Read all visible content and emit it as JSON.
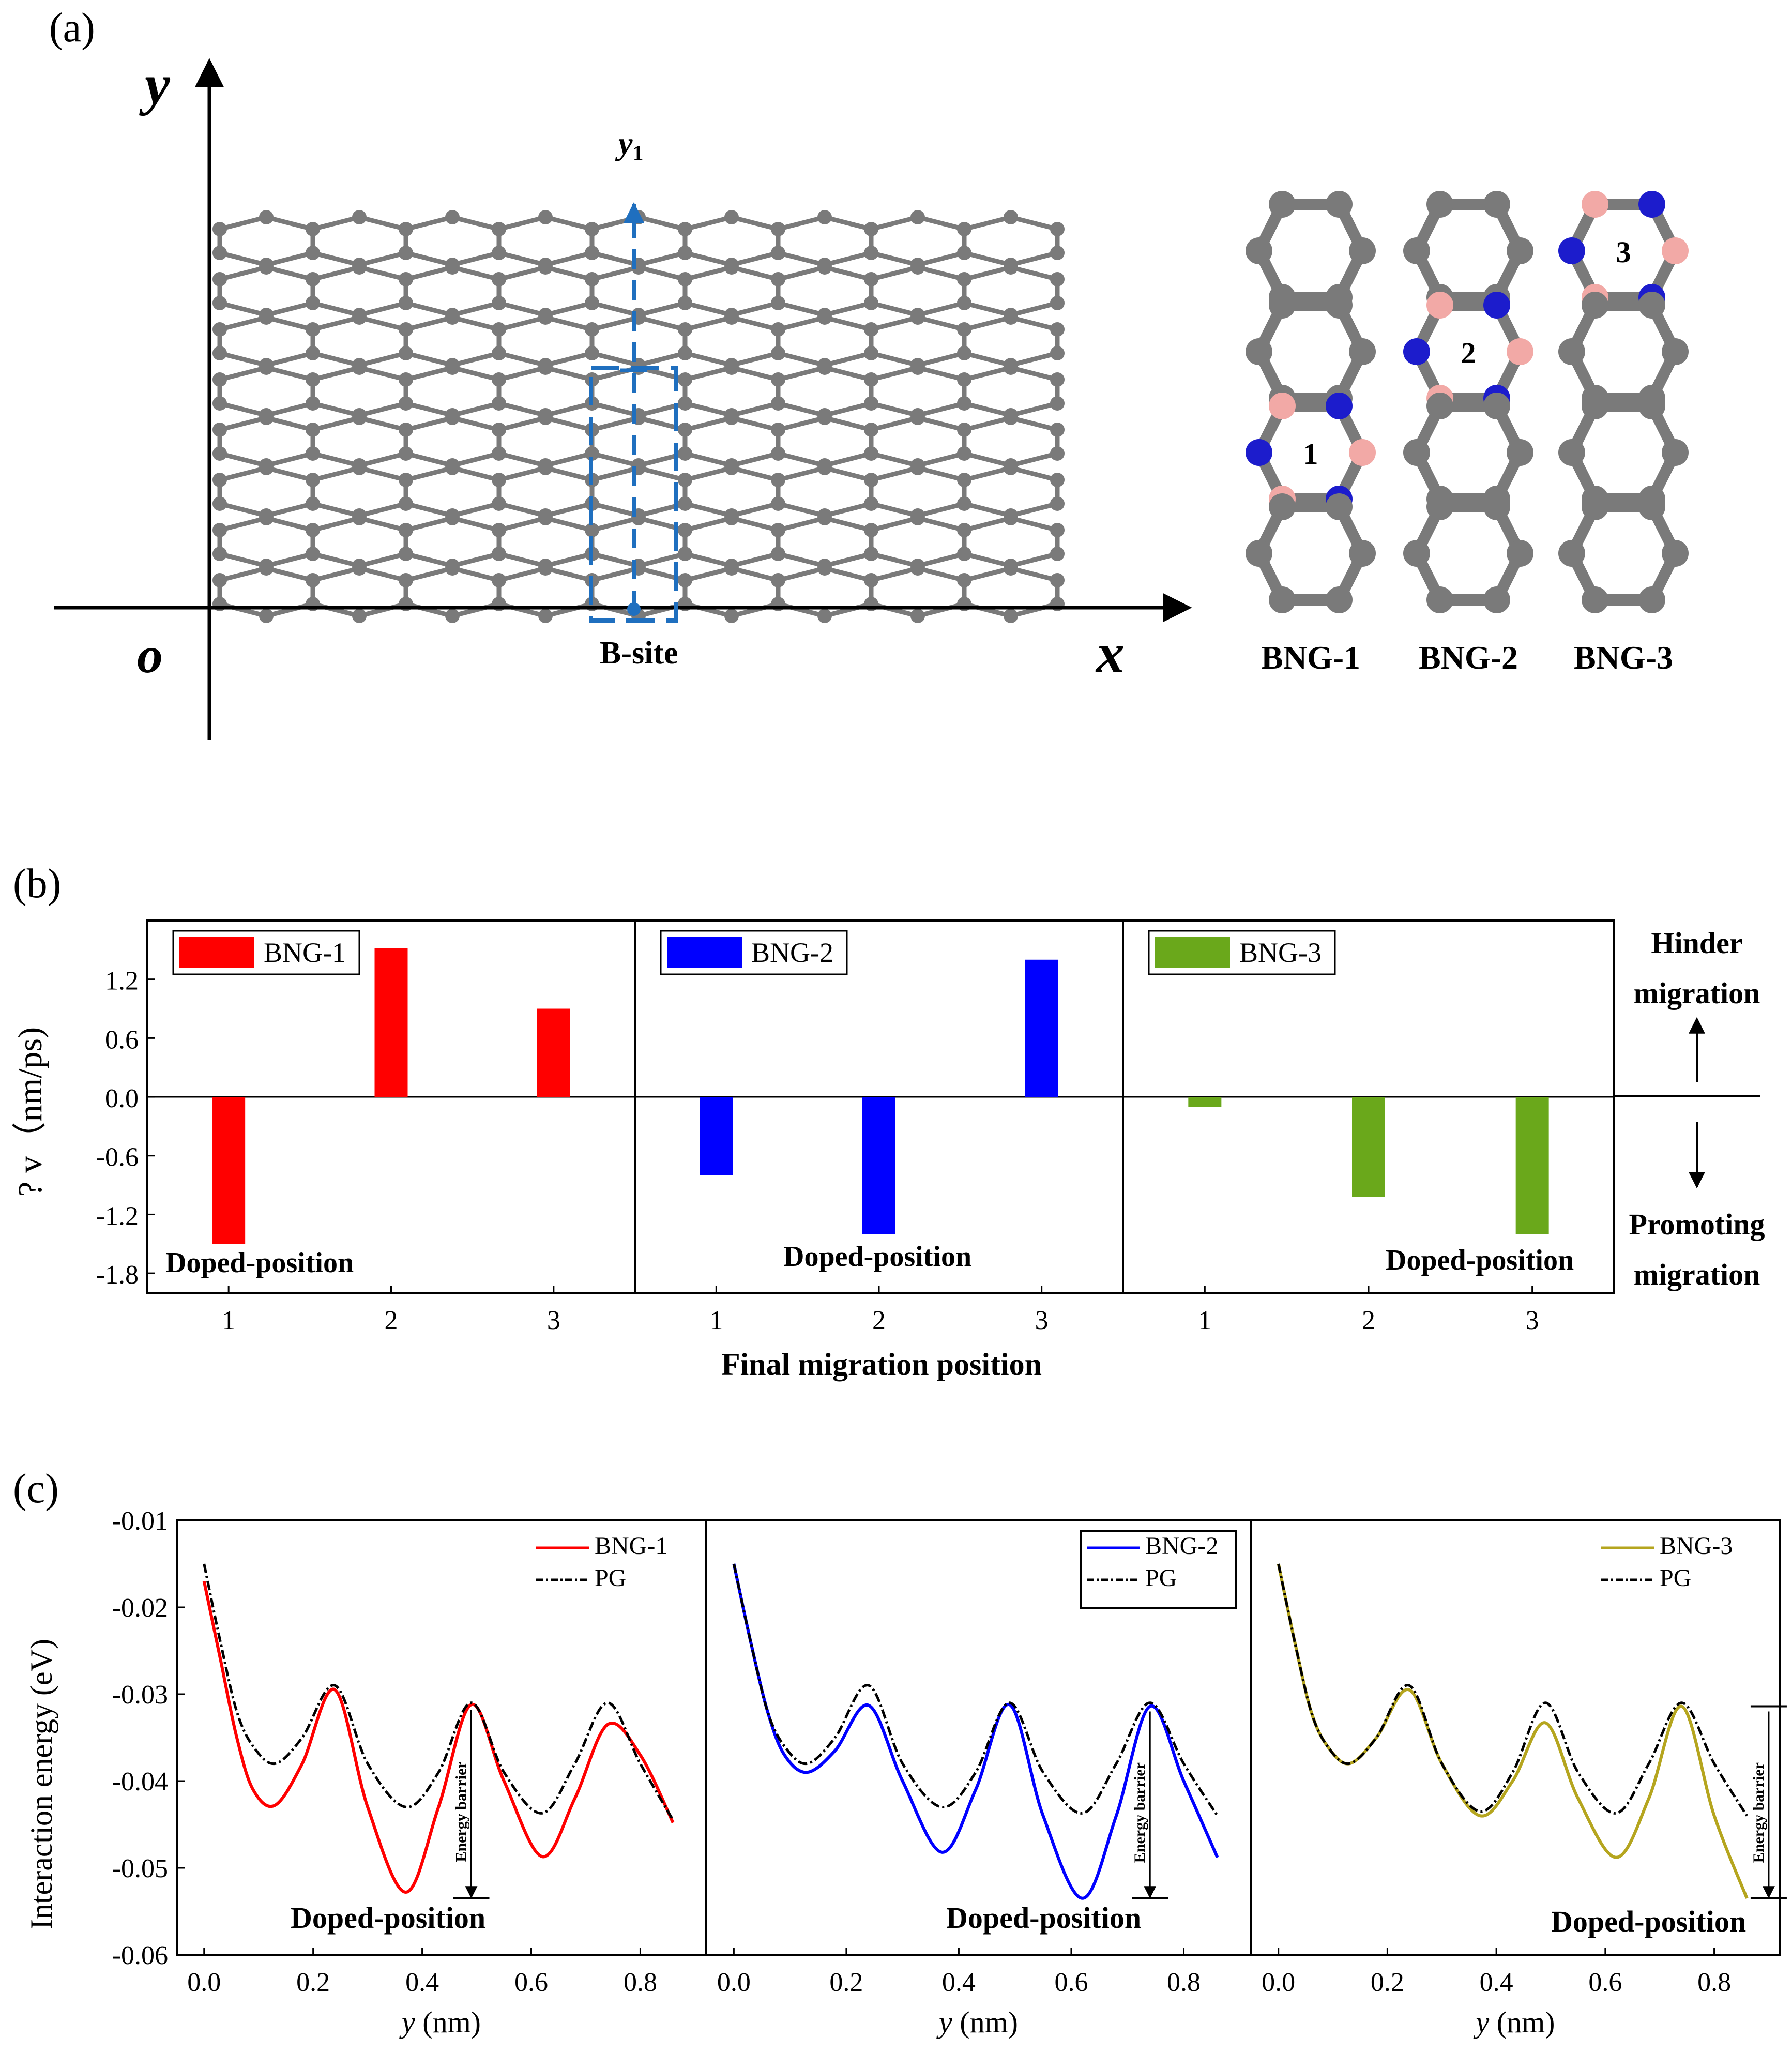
{
  "colors": {
    "carbon": "#7a7a7a",
    "boron": "#f2a9a6",
    "nitrogen": "#1c1ccc",
    "bng1": "#ff0000",
    "bng2": "#0000ff",
    "bng3_bar": "#6aa81b",
    "bng3_line": "#b5a51e",
    "pg": "#000000",
    "bsite": "#1f6fbf"
  },
  "panel_a": {
    "label": "(a)",
    "axis_y": "y",
    "axis_x": "x",
    "origin": "o",
    "y1_label": "y",
    "y1_sub": "1",
    "bsite_label": "B-site",
    "structures": [
      {
        "name": "BNG-1",
        "ring_label": "1"
      },
      {
        "name": "BNG-2",
        "ring_label": "2"
      },
      {
        "name": "BNG-3",
        "ring_label": "3"
      }
    ]
  },
  "panel_b": {
    "label": "(b)",
    "ylabel": "? v（nm/ps)",
    "xlabel": "Final migration position",
    "hinder_1": "Hinder",
    "hinder_2": "migration",
    "promote_1": "Promoting",
    "promote_2": "migration"
  },
  "panel_c": {
    "label": "(c)",
    "ylabel": "Interaction energy (eV)",
    "xlabel_var": "y",
    "xlabel_unit": " (nm)",
    "barrier_label": "Energy barrier"
  },
  "chart_data": [
    {
      "type": "bar",
      "subplot": "BNG-1",
      "legend": "BNG-1",
      "categories": [
        "1",
        "2",
        "3"
      ],
      "values": [
        -1.5,
        1.52,
        0.9
      ],
      "ylim": [
        -2.0,
        1.8
      ],
      "yticks": [
        "1.2",
        "0.6",
        "0.0",
        "-0.6",
        "-1.2",
        "-1.8"
      ],
      "annotation": "Doped-position"
    },
    {
      "type": "bar",
      "subplot": "BNG-2",
      "legend": "BNG-2",
      "categories": [
        "1",
        "2",
        "3"
      ],
      "values": [
        -0.8,
        -1.4,
        1.4
      ],
      "ylim": [
        -2.0,
        1.8
      ],
      "annotation": "Doped-position"
    },
    {
      "type": "bar",
      "subplot": "BNG-3",
      "legend": "BNG-3",
      "categories": [
        "1",
        "2",
        "3"
      ],
      "values": [
        -0.1,
        -1.02,
        -1.4
      ],
      "ylim": [
        -2.0,
        1.8
      ],
      "annotation": "Doped-position"
    },
    {
      "type": "line",
      "subplot": "BNG-1",
      "xlim": [
        -0.05,
        0.92
      ],
      "ylim": [
        -0.06,
        -0.01
      ],
      "xticks": [
        "0.0",
        "0.2",
        "0.4",
        "0.6",
        "0.8"
      ],
      "yticks": [
        "-0.01",
        "-0.02",
        "-0.03",
        "-0.04",
        "-0.05",
        "-0.06"
      ],
      "series": [
        {
          "name": "BNG-1",
          "x": [
            0,
            0.03,
            0.06,
            0.09,
            0.13,
            0.18,
            0.24,
            0.3,
            0.37,
            0.43,
            0.49,
            0.55,
            0.62,
            0.68,
            0.74,
            0.8,
            0.86
          ],
          "y": [
            -0.017,
            -0.026,
            -0.035,
            -0.041,
            -0.0428,
            -0.038,
            -0.0295,
            -0.043,
            -0.0528,
            -0.043,
            -0.0312,
            -0.04,
            -0.0487,
            -0.042,
            -0.0335,
            -0.037,
            -0.0448
          ]
        },
        {
          "name": "PG",
          "x": [
            0,
            0.03,
            0.06,
            0.09,
            0.13,
            0.18,
            0.24,
            0.3,
            0.37,
            0.43,
            0.49,
            0.55,
            0.62,
            0.68,
            0.74,
            0.8,
            0.86
          ],
          "y": [
            -0.015,
            -0.024,
            -0.032,
            -0.036,
            -0.038,
            -0.035,
            -0.029,
            -0.038,
            -0.043,
            -0.039,
            -0.031,
            -0.039,
            -0.0437,
            -0.038,
            -0.031,
            -0.038,
            -0.0445
          ]
        }
      ],
      "annotation": "Doped-position"
    },
    {
      "type": "line",
      "subplot": "BNG-2",
      "xlim": [
        -0.05,
        0.92
      ],
      "ylim": [
        -0.06,
        -0.01
      ],
      "xticks": [
        "0.0",
        "0.2",
        "0.4",
        "0.6",
        "0.8"
      ],
      "series": [
        {
          "name": "BNG-2",
          "x": [
            0,
            0.03,
            0.06,
            0.09,
            0.13,
            0.18,
            0.24,
            0.3,
            0.37,
            0.43,
            0.49,
            0.55,
            0.62,
            0.68,
            0.74,
            0.8,
            0.86
          ],
          "y": [
            -0.015,
            -0.024,
            -0.032,
            -0.037,
            -0.039,
            -0.0365,
            -0.0313,
            -0.04,
            -0.0482,
            -0.041,
            -0.0312,
            -0.044,
            -0.0535,
            -0.044,
            -0.0314,
            -0.04,
            -0.0488
          ]
        },
        {
          "name": "PG",
          "x": [
            0,
            0.03,
            0.06,
            0.09,
            0.13,
            0.18,
            0.24,
            0.3,
            0.37,
            0.43,
            0.49,
            0.55,
            0.62,
            0.68,
            0.74,
            0.8,
            0.86
          ],
          "y": [
            -0.015,
            -0.024,
            -0.032,
            -0.036,
            -0.038,
            -0.035,
            -0.029,
            -0.038,
            -0.043,
            -0.039,
            -0.031,
            -0.039,
            -0.0437,
            -0.038,
            -0.031,
            -0.038,
            -0.044
          ]
        }
      ],
      "annotation": "Doped-position"
    },
    {
      "type": "line",
      "subplot": "BNG-3",
      "xlim": [
        -0.05,
        0.92
      ],
      "ylim": [
        -0.06,
        -0.01
      ],
      "xticks": [
        "0.0",
        "0.2",
        "0.4",
        "0.6",
        "0.8"
      ],
      "series": [
        {
          "name": "BNG-3",
          "x": [
            0,
            0.03,
            0.06,
            0.09,
            0.13,
            0.18,
            0.24,
            0.3,
            0.37,
            0.43,
            0.49,
            0.55,
            0.62,
            0.68,
            0.74,
            0.8,
            0.86
          ],
          "y": [
            -0.015,
            -0.024,
            -0.032,
            -0.036,
            -0.038,
            -0.035,
            -0.0295,
            -0.038,
            -0.044,
            -0.04,
            -0.0333,
            -0.042,
            -0.0488,
            -0.042,
            -0.0314,
            -0.044,
            -0.0535
          ]
        },
        {
          "name": "PG",
          "x": [
            0,
            0.03,
            0.06,
            0.09,
            0.13,
            0.18,
            0.24,
            0.3,
            0.37,
            0.43,
            0.49,
            0.55,
            0.62,
            0.68,
            0.74,
            0.8,
            0.86
          ],
          "y": [
            -0.015,
            -0.024,
            -0.032,
            -0.036,
            -0.038,
            -0.035,
            -0.029,
            -0.038,
            -0.0435,
            -0.039,
            -0.031,
            -0.039,
            -0.0437,
            -0.038,
            -0.031,
            -0.038,
            -0.044
          ]
        }
      ],
      "annotation": "Doped-position"
    }
  ]
}
